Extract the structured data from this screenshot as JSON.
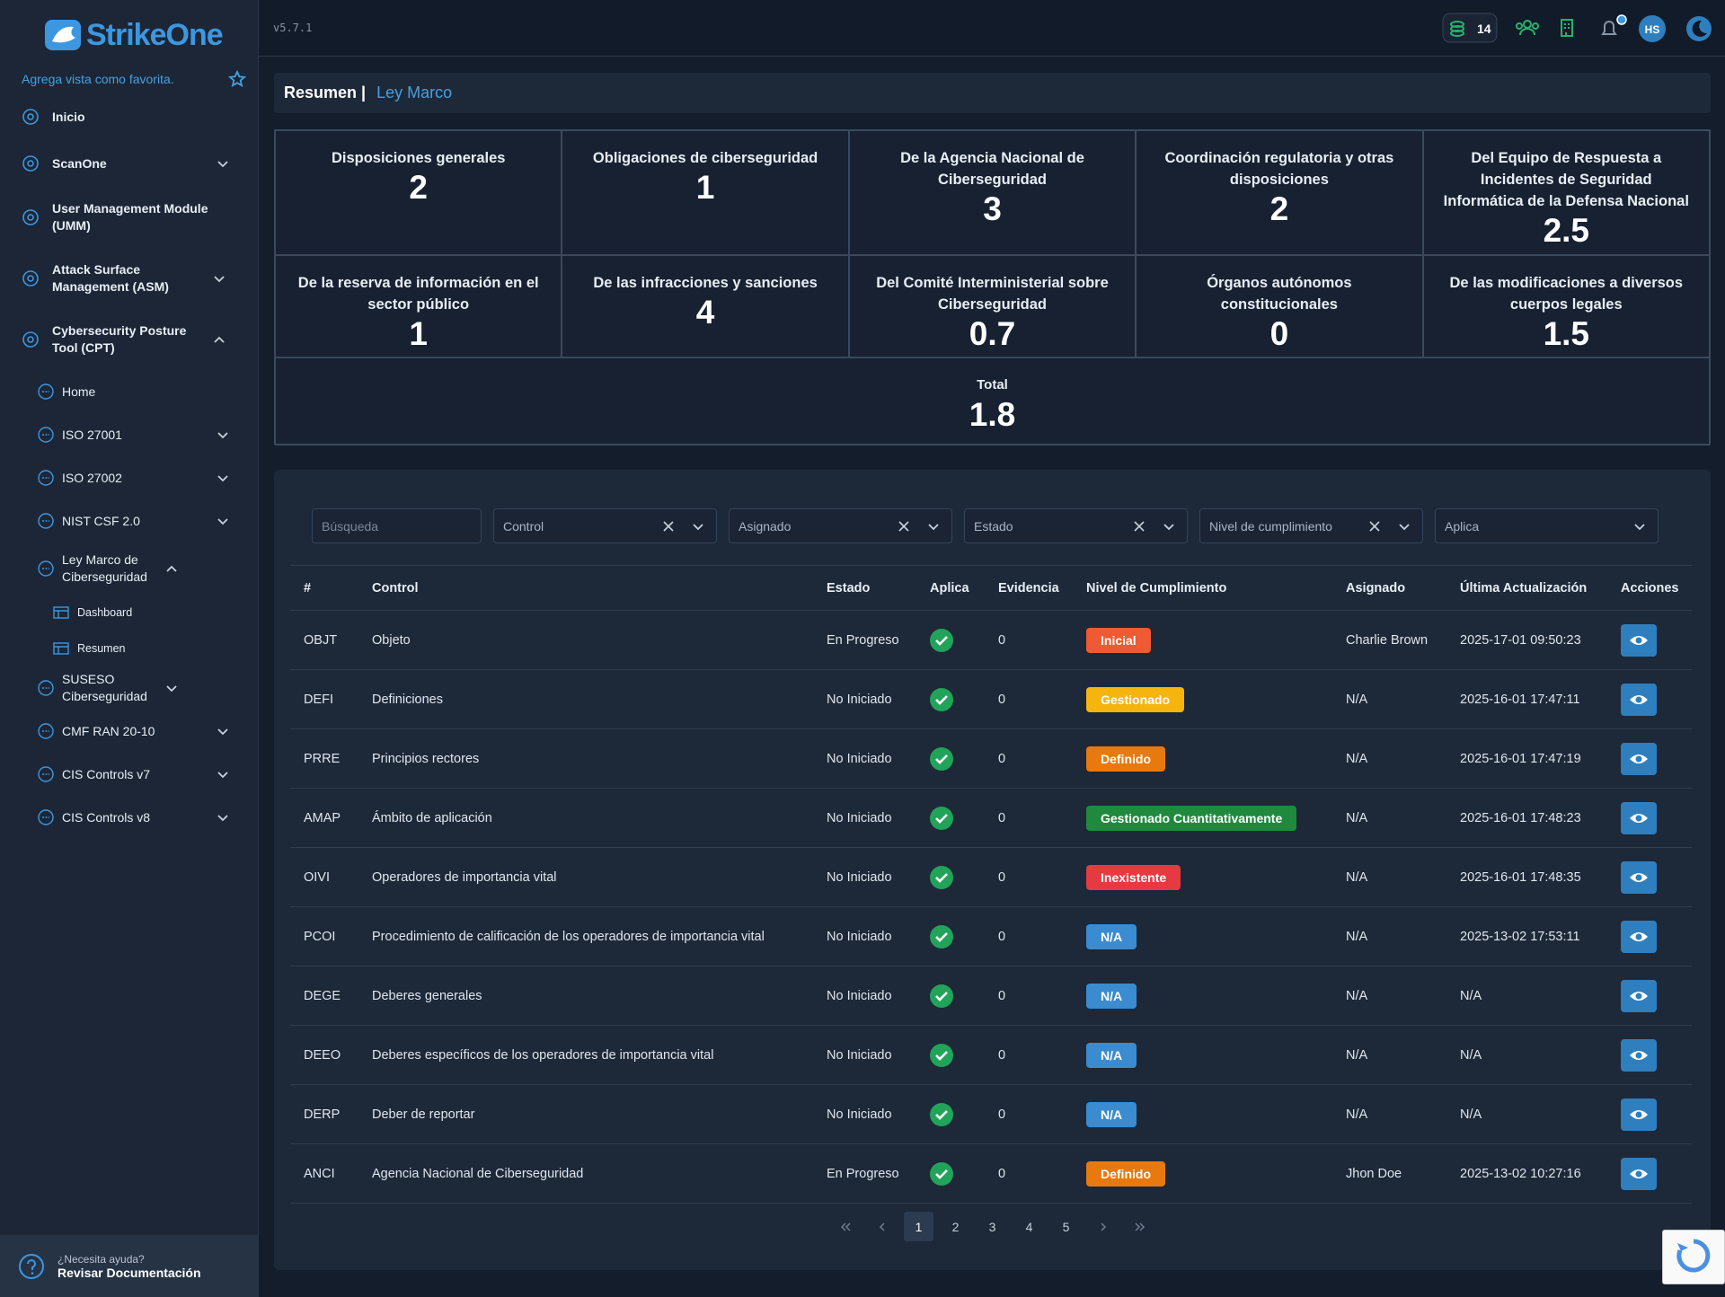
{
  "header": {
    "version": "v5.7.1",
    "credits": 14,
    "user_initials": "HS"
  },
  "sidebar": {
    "logo": "StrikeOne",
    "favorite_hint": "Agrega vista como favorita.",
    "nav": [
      {
        "label": "Inicio"
      },
      {
        "label": "ScanOne",
        "chevron": "down"
      },
      {
        "label": "User Management Module (UMM)"
      },
      {
        "label": "Attack Surface Management (ASM)",
        "chevron": "down"
      },
      {
        "label": "Cybersecurity Posture Tool (CPT)",
        "chevron": "up",
        "children": [
          {
            "label": "Home"
          },
          {
            "label": "ISO 27001",
            "chevron": "down"
          },
          {
            "label": "ISO 27002",
            "chevron": "down"
          },
          {
            "label": "NIST CSF 2.0",
            "chevron": "down"
          },
          {
            "label": "Ley Marco de Ciberseguridad",
            "chevron": "up",
            "children": [
              {
                "label": "Dashboard"
              },
              {
                "label": "Resumen"
              }
            ]
          },
          {
            "label": "SUSESO Ciberseguridad",
            "chevron": "down"
          },
          {
            "label": "CMF RAN 20-10",
            "chevron": "down"
          },
          {
            "label": "CIS Controls v7",
            "chevron": "down"
          },
          {
            "label": "CIS Controls v8",
            "chevron": "down"
          }
        ]
      }
    ],
    "help": {
      "question": "¿Necesita ayuda?",
      "link": "Revisar Documentación"
    }
  },
  "breadcrumb": {
    "current": "Resumen |",
    "link": "Ley Marco"
  },
  "summary": {
    "cards": [
      {
        "label": "Disposiciones generales",
        "value": 2
      },
      {
        "label": "Obligaciones de ciberseguridad",
        "value": 1
      },
      {
        "label": "De la Agencia Nacional de Ciberseguridad",
        "value": 3
      },
      {
        "label": "Coordinación regulatoria y otras disposiciones",
        "value": 2
      },
      {
        "label": "Del Equipo de Respuesta a Incidentes de Seguridad Informática de la Defensa Nacional",
        "value": 2.5
      },
      {
        "label": "De la reserva de información en el sector público",
        "value": 1
      },
      {
        "label": "De las infracciones y sanciones",
        "value": 4
      },
      {
        "label": "Del Comité Interministerial sobre Ciberseguridad",
        "value": 0.7
      },
      {
        "label": "Órganos autónomos constitucionales",
        "value": 0
      },
      {
        "label": "De las modificaciones a diversos cuerpos legales",
        "value": 1.5
      }
    ],
    "total": {
      "label": "Total",
      "value": 1.8
    }
  },
  "filters": {
    "search": "Búsqueda",
    "selects": [
      "Control",
      "Asignado",
      "Estado",
      "Nivel de cumplimiento",
      "Aplica"
    ],
    "clearable": [
      true,
      true,
      true,
      true,
      false
    ]
  },
  "table": {
    "headers": [
      "#",
      "Control",
      "Estado",
      "Aplica",
      "Evidencia",
      "Nivel de Cumplimiento",
      "Asignado",
      "Última Actualización",
      "Acciones"
    ],
    "rows": [
      {
        "code": "OBJT",
        "control": "Objeto",
        "estado": "En Progreso",
        "aplica": true,
        "evidencia": 0,
        "nivel": "Inicial",
        "nivel_color": "#ef5a35",
        "asignado": "Charlie Brown",
        "actualizado": "2025-17-01 09:50:23"
      },
      {
        "code": "DEFI",
        "control": "Definiciones",
        "estado": "No Iniciado",
        "aplica": true,
        "evidencia": 0,
        "nivel": "Gestionado",
        "nivel_color": "#f6b40e",
        "asignado": "N/A",
        "actualizado": "2025-16-01 17:47:11"
      },
      {
        "code": "PRRE",
        "control": "Principios rectores",
        "estado": "No Iniciado",
        "aplica": true,
        "evidencia": 0,
        "nivel": "Definido",
        "nivel_color": "#e8790e",
        "asignado": "N/A",
        "actualizado": "2025-16-01 17:47:19"
      },
      {
        "code": "AMAP",
        "control": "Ámbito de aplicación",
        "estado": "No Iniciado",
        "aplica": true,
        "evidencia": 0,
        "nivel": "Gestionado Cuantitativamente",
        "nivel_color": "#1f8a3e",
        "asignado": "N/A",
        "actualizado": "2025-16-01 17:48:23"
      },
      {
        "code": "OIVI",
        "control": "Operadores de importancia vital",
        "estado": "No Iniciado",
        "aplica": true,
        "evidencia": 0,
        "nivel": "Inexistente",
        "nivel_color": "#e53a40",
        "asignado": "N/A",
        "actualizado": "2025-16-01 17:48:35"
      },
      {
        "code": "PCOI",
        "control": "Procedimiento de calificación de los operadores de importancia vital",
        "estado": "No Iniciado",
        "aplica": true,
        "evidencia": 0,
        "nivel": "N/A",
        "nivel_color": "#3a8bd0",
        "asignado": "N/A",
        "actualizado": "2025-13-02 17:53:11"
      },
      {
        "code": "DEGE",
        "control": "Deberes generales",
        "estado": "No Iniciado",
        "aplica": true,
        "evidencia": 0,
        "nivel": "N/A",
        "nivel_color": "#3a8bd0",
        "asignado": "N/A",
        "actualizado": "N/A"
      },
      {
        "code": "DEEO",
        "control": "Deberes específicos de los operadores de importancia vital",
        "estado": "No Iniciado",
        "aplica": true,
        "evidencia": 0,
        "nivel": "N/A",
        "nivel_color": "#3a8bd0",
        "asignado": "N/A",
        "actualizado": "N/A"
      },
      {
        "code": "DERP",
        "control": "Deber de reportar",
        "estado": "No Iniciado",
        "aplica": true,
        "evidencia": 0,
        "nivel": "N/A",
        "nivel_color": "#3a8bd0",
        "asignado": "N/A",
        "actualizado": "N/A"
      },
      {
        "code": "ANCI",
        "control": "Agencia Nacional de Ciberseguridad",
        "estado": "En Progreso",
        "aplica": true,
        "evidencia": 0,
        "nivel": "Definido",
        "nivel_color": "#e8790e",
        "asignado": "Jhon Doe",
        "actualizado": "2025-13-02 10:27:16"
      }
    ]
  },
  "pagination": {
    "pages": [
      1,
      2,
      3,
      4,
      5
    ],
    "current": 1
  }
}
